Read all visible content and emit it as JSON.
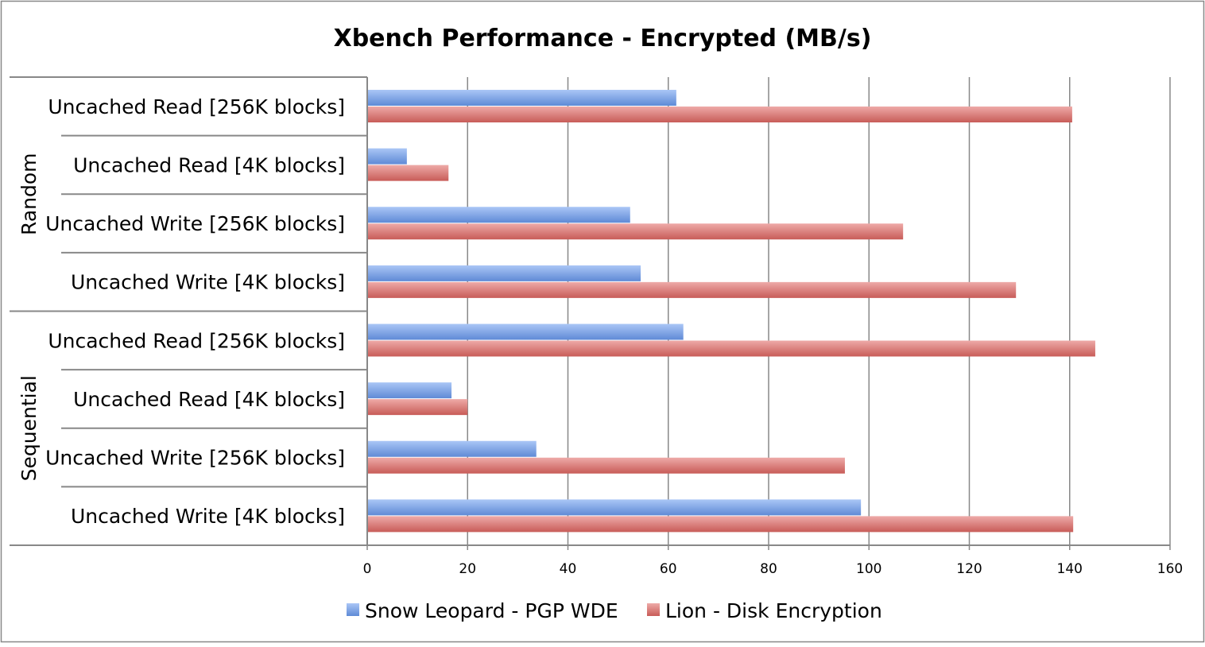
{
  "chart_data": {
    "type": "bar",
    "orientation": "horizontal",
    "title": "Xbench Performance - Encrypted (MB/s)",
    "xlabel": "",
    "ylabel": "",
    "xlim": [
      0,
      160
    ],
    "ticks": [
      0,
      20,
      40,
      60,
      80,
      100,
      120,
      140,
      160
    ],
    "grid": true,
    "legend_position": "bottom",
    "groups": [
      {
        "name": "Random",
        "categories": [
          "Uncached Read [256K blocks]",
          "Uncached Read [4K blocks]",
          "Uncached Write [256K blocks]",
          "Uncached Write [4K blocks]"
        ]
      },
      {
        "name": "Sequential",
        "categories": [
          "Uncached Read [256K blocks]",
          "Uncached Read [4K blocks]",
          "Uncached Write [256K blocks]",
          "Uncached Write [4K blocks]"
        ]
      }
    ],
    "series": [
      {
        "name": "Snow Leopard - PGP WDE",
        "color": "#7ea4e4",
        "values": [
          61.6,
          7.9,
          52.4,
          54.5,
          63.0,
          16.8,
          33.7,
          98.4
        ]
      },
      {
        "name": "Lion - Disk Encryption",
        "color": "#d87470",
        "values": [
          140.5,
          16.2,
          106.8,
          129.3,
          145.1,
          20.0,
          95.2,
          140.7
        ]
      }
    ]
  }
}
